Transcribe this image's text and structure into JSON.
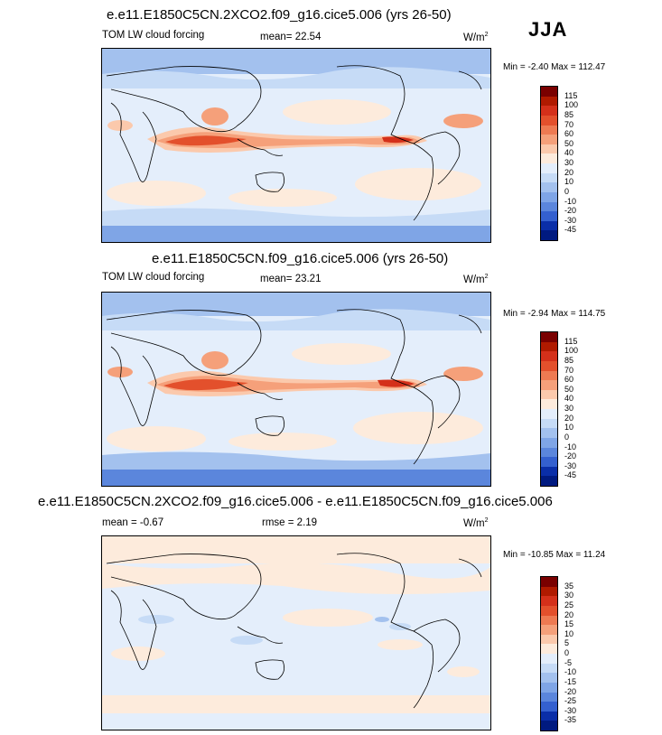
{
  "season": "JJA",
  "panels": [
    {
      "title": "e.e11.E1850C5CN.2XCO2.f09_g16.cice5.006 (yrs 26-50)",
      "left_label": "TOM LW cloud forcing",
      "stat_label": "mean=",
      "stat_value": "22.54",
      "units": "W/m",
      "units_sup": "2",
      "minmax": "Min =  -2.40 Max = 112.47",
      "levels": [
        "115",
        "100",
        "85",
        "70",
        "60",
        "50",
        "40",
        "30",
        "20",
        "10",
        "0",
        "-10",
        "-20",
        "-30",
        "-45"
      ]
    },
    {
      "title": "e.e11.E1850C5CN.f09_g16.cice5.006 (yrs 26-50)",
      "left_label": "TOM LW cloud forcing",
      "stat_label": "mean=",
      "stat_value": "23.21",
      "units": "W/m",
      "units_sup": "2",
      "minmax": "Min =  -2.94 Max = 114.75",
      "levels": [
        "115",
        "100",
        "85",
        "70",
        "60",
        "50",
        "40",
        "30",
        "20",
        "10",
        "0",
        "-10",
        "-20",
        "-30",
        "-45"
      ]
    },
    {
      "title": "e.e11.E1850C5CN.2XCO2.f09_g16.cice5.006 - e.e11.E1850C5CN.f09_g16.cice5.006",
      "left_label": "mean =  -0.67",
      "stat_label": "rmse =",
      "stat_value": "2.19",
      "units": "W/m",
      "units_sup": "2",
      "minmax": "Min = -10.85 Max =  11.24",
      "levels": [
        "35",
        "30",
        "25",
        "20",
        "15",
        "10",
        "5",
        "0",
        "-5",
        "-10",
        "-15",
        "-20",
        "-25",
        "-30",
        "-35"
      ]
    }
  ],
  "colors": {
    "abs_scale": [
      "#7a0000",
      "#b01a00",
      "#d4301a",
      "#e3502c",
      "#ee7a52",
      "#f5a07a",
      "#fbc9ac",
      "#fdebdc",
      "#e4eefb",
      "#c6dbf6",
      "#a3c1ee",
      "#7fa5e6",
      "#5b86dc",
      "#3460cf",
      "#0a2ea8",
      "#001a80"
    ],
    "diff_scale": [
      "#7a0000",
      "#b01a00",
      "#d4301a",
      "#e3502c",
      "#ee7a52",
      "#f5a07a",
      "#fbc9ac",
      "#fdebdc",
      "#e4eefb",
      "#c6dbf6",
      "#a3c1ee",
      "#7fa5e6",
      "#5b86dc",
      "#3460cf",
      "#0a2ea8",
      "#001a80"
    ]
  },
  "chart_data": [
    {
      "type": "heatmap",
      "title": "e.e11.E1850C5CN.2XCO2.f09_g16.cice5.006 (yrs 26-50)",
      "variable": "TOM LW cloud forcing",
      "units": "W/m2",
      "mean": 22.54,
      "min": -2.4,
      "max": 112.47,
      "contour_levels": [
        -45,
        -30,
        -20,
        -10,
        0,
        10,
        20,
        30,
        40,
        50,
        60,
        70,
        85,
        100,
        115
      ]
    },
    {
      "type": "heatmap",
      "title": "e.e11.E1850C5CN.f09_g16.cice5.006 (yrs 26-50)",
      "variable": "TOM LW cloud forcing",
      "units": "W/m2",
      "mean": 23.21,
      "min": -2.94,
      "max": 114.75,
      "contour_levels": [
        -45,
        -30,
        -20,
        -10,
        0,
        10,
        20,
        30,
        40,
        50,
        60,
        70,
        85,
        100,
        115
      ]
    },
    {
      "type": "heatmap",
      "title": "e.e11.E1850C5CN.2XCO2.f09_g16.cice5.006 - e.e11.E1850C5CN.f09_g16.cice5.006",
      "units": "W/m2",
      "mean": -0.67,
      "rmse": 2.19,
      "min": -10.85,
      "max": 11.24,
      "contour_levels": [
        -35,
        -30,
        -25,
        -20,
        -15,
        -10,
        -5,
        0,
        5,
        10,
        15,
        20,
        25,
        30,
        35
      ]
    }
  ]
}
